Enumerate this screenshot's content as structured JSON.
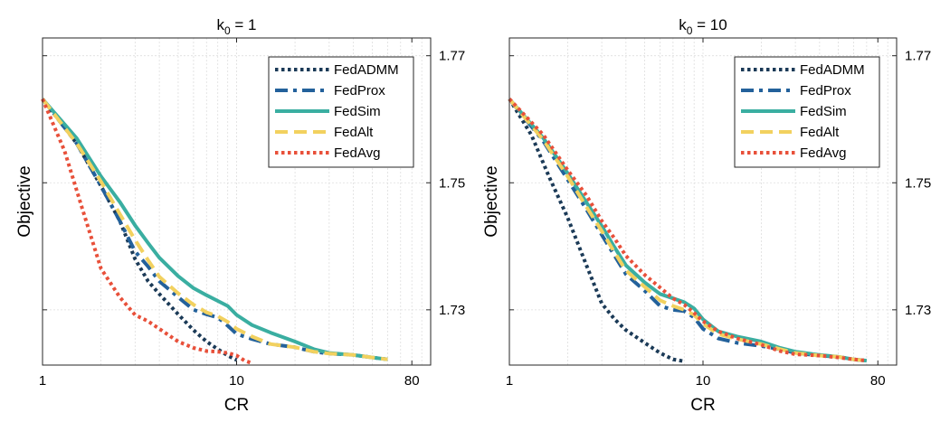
{
  "chart_data": [
    {
      "type": "line",
      "title": {
        "base": "k",
        "subscript": "0",
        "rest": " = 1"
      },
      "xlabel": "CR",
      "ylabel": "Objective",
      "xscale": "log",
      "xlim": [
        1,
        100
      ],
      "ylim": [
        1.7213,
        1.7728
      ],
      "xticks": [
        1,
        10,
        80
      ],
      "xtick_labels": [
        "1",
        "10",
        "80"
      ],
      "yticks": [
        1.73,
        1.75,
        1.77
      ],
      "ytick_labels": [
        "1.73",
        "1.75",
        "1.77"
      ],
      "y_axis_side": "right",
      "grid": true,
      "legend": "top-right",
      "series": [
        {
          "name": "FedADMM",
          "color": "#1b3a57",
          "style": "dotted",
          "x": [
            1,
            1.5,
            2,
            2.5,
            3,
            3.5,
            4,
            5,
            6,
            7,
            8,
            9,
            10
          ],
          "y": [
            1.7632,
            1.7562,
            1.7495,
            1.744,
            1.738,
            1.7345,
            1.7325,
            1.7293,
            1.7268,
            1.725,
            1.7238,
            1.7228,
            1.7221
          ]
        },
        {
          "name": "FedProx",
          "color": "#23619b",
          "style": "dashdot",
          "x": [
            1,
            1.5,
            2,
            2.5,
            3,
            3.5,
            4,
            5,
            6,
            7,
            8,
            9,
            10,
            12,
            15,
            20,
            25,
            30,
            40,
            50,
            60
          ],
          "y": [
            1.7632,
            1.7562,
            1.7495,
            1.744,
            1.7392,
            1.7368,
            1.7345,
            1.732,
            1.73,
            1.7293,
            1.7288,
            1.7275,
            1.7262,
            1.7254,
            1.7246,
            1.7241,
            1.7234,
            1.7231,
            1.7229,
            1.7225,
            1.7222
          ]
        },
        {
          "name": "FedSim",
          "color": "#3aaea1",
          "style": "solid",
          "x": [
            1,
            1.5,
            2,
            2.5,
            3,
            3.5,
            4,
            5,
            6,
            7,
            8,
            9,
            10,
            12,
            15,
            20,
            25,
            30,
            40,
            50,
            60
          ],
          "y": [
            1.7632,
            1.757,
            1.751,
            1.747,
            1.7433,
            1.7405,
            1.7382,
            1.7353,
            1.7334,
            1.7323,
            1.7314,
            1.7306,
            1.7292,
            1.7276,
            1.7264,
            1.725,
            1.7238,
            1.7232,
            1.7229,
            1.7225,
            1.7222
          ]
        },
        {
          "name": "FedAlt",
          "color": "#f2d15f",
          "style": "dashed",
          "x": [
            1,
            1.5,
            2,
            2.5,
            3,
            3.5,
            4,
            5,
            6,
            7,
            8,
            9,
            10,
            12,
            15,
            20,
            25,
            30,
            40,
            50,
            60
          ],
          "y": [
            1.7632,
            1.7562,
            1.7502,
            1.7451,
            1.741,
            1.7378,
            1.7352,
            1.7326,
            1.7308,
            1.7296,
            1.729,
            1.7281,
            1.727,
            1.7258,
            1.7246,
            1.7241,
            1.7234,
            1.7231,
            1.7229,
            1.7225,
            1.7222
          ]
        },
        {
          "name": "FedAvg",
          "color": "#e8503a",
          "style": "dotted",
          "x": [
            1,
            1.3,
            1.6,
            2,
            2.5,
            3,
            3.5,
            4,
            5,
            6,
            7,
            8,
            9,
            10,
            11,
            12
          ],
          "y": [
            1.7632,
            1.755,
            1.746,
            1.7365,
            1.732,
            1.7292,
            1.7282,
            1.727,
            1.725,
            1.724,
            1.7235,
            1.7234,
            1.7232,
            1.7228,
            1.722,
            1.7216
          ]
        }
      ]
    },
    {
      "type": "line",
      "title": {
        "base": "k",
        "subscript": "0",
        "rest": " = 10"
      },
      "xlabel": "CR",
      "ylabel": "Objective",
      "xscale": "log",
      "xlim": [
        1,
        100
      ],
      "ylim": [
        1.7213,
        1.7728
      ],
      "xticks": [
        1,
        10,
        80
      ],
      "xtick_labels": [
        "1",
        "10",
        "80"
      ],
      "yticks": [
        1.73,
        1.75,
        1.77
      ],
      "ytick_labels": [
        "1.73",
        "1.75",
        "1.77"
      ],
      "y_axis_side": "right",
      "grid": true,
      "legend": "top-right",
      "series": [
        {
          "name": "FedADMM",
          "color": "#1b3a57",
          "style": "dotted",
          "x": [
            1,
            1.3,
            1.6,
            2,
            2.5,
            3,
            3.5,
            4,
            5,
            6,
            7,
            8
          ],
          "y": [
            1.7632,
            1.7575,
            1.751,
            1.7445,
            1.737,
            1.731,
            1.7285,
            1.7268,
            1.7248,
            1.7232,
            1.7222,
            1.7219
          ]
        },
        {
          "name": "FedProx",
          "color": "#23619b",
          "style": "dashdot",
          "x": [
            1,
            1.5,
            2,
            2.5,
            3,
            3.5,
            4,
            5,
            6,
            7,
            8,
            9,
            10,
            12,
            15,
            20,
            25,
            30,
            40,
            50,
            60,
            70
          ],
          "y": [
            1.7632,
            1.7565,
            1.7505,
            1.7458,
            1.7418,
            1.7385,
            1.7356,
            1.733,
            1.7306,
            1.73,
            1.7298,
            1.7288,
            1.727,
            1.7255,
            1.7248,
            1.7243,
            1.7238,
            1.7232,
            1.7228,
            1.7226,
            1.7222,
            1.722
          ]
        },
        {
          "name": "FedSim",
          "color": "#3aaea1",
          "style": "solid",
          "x": [
            1,
            1.5,
            2,
            2.5,
            3,
            3.5,
            4,
            5,
            6,
            7,
            8,
            9,
            10,
            12,
            15,
            20,
            25,
            30,
            40,
            50,
            60,
            70
          ],
          "y": [
            1.7632,
            1.757,
            1.7515,
            1.7469,
            1.7432,
            1.7398,
            1.737,
            1.7343,
            1.7325,
            1.7318,
            1.7312,
            1.7302,
            1.7285,
            1.7266,
            1.7258,
            1.725,
            1.724,
            1.7234,
            1.7229,
            1.7226,
            1.7222,
            1.722
          ]
        },
        {
          "name": "FedAlt",
          "color": "#f2d15f",
          "style": "dashed",
          "x": [
            1,
            1.5,
            2,
            2.5,
            3,
            3.5,
            4,
            5,
            6,
            7,
            8,
            9,
            10,
            12,
            15,
            20,
            25,
            30,
            40,
            50,
            60,
            70
          ],
          "y": [
            1.7632,
            1.7567,
            1.751,
            1.7462,
            1.7424,
            1.739,
            1.7362,
            1.7336,
            1.7315,
            1.7306,
            1.73,
            1.7292,
            1.7278,
            1.7262,
            1.7254,
            1.7246,
            1.7238,
            1.7232,
            1.7228,
            1.7226,
            1.7222,
            1.722
          ]
        },
        {
          "name": "FedAvg",
          "color": "#e8503a",
          "style": "dotted",
          "x": [
            1,
            1.5,
            2,
            2.5,
            3,
            3.5,
            4,
            5,
            6,
            7,
            8,
            9,
            10,
            12,
            15,
            20,
            25,
            30,
            40,
            50,
            60,
            70
          ],
          "y": [
            1.7632,
            1.7575,
            1.752,
            1.748,
            1.744,
            1.7412,
            1.7385,
            1.7355,
            1.7335,
            1.7318,
            1.7308,
            1.7295,
            1.7282,
            1.7266,
            1.7255,
            1.7245,
            1.7235,
            1.723,
            1.7228,
            1.7225,
            1.7222,
            1.722
          ]
        }
      ]
    }
  ]
}
